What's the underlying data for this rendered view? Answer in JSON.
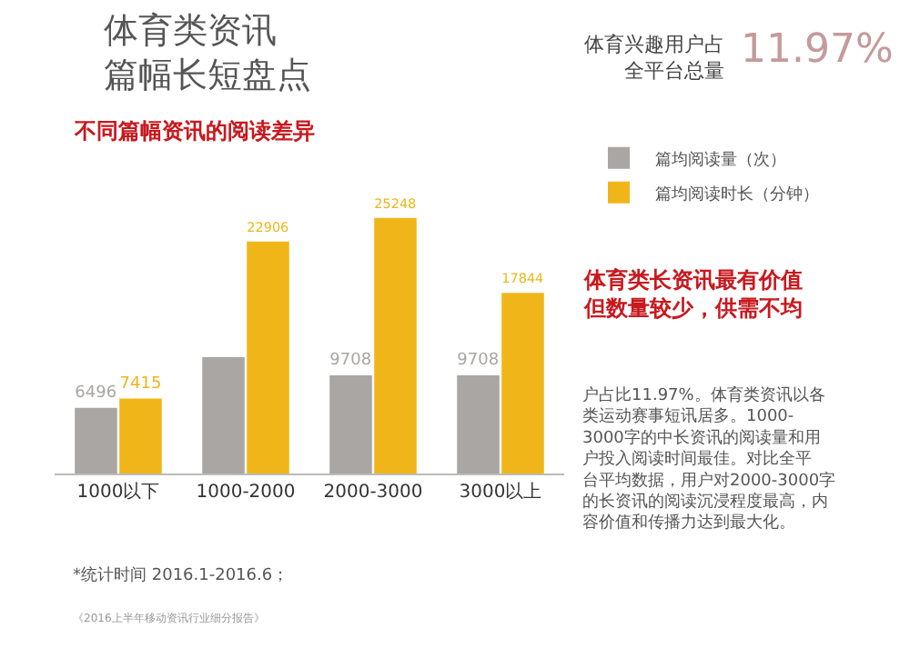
{
  "chart_data": {
    "type": "bar",
    "title": "体育类资讯篇幅长短盘点",
    "subtitle": "不同篇幅资讯的阅读差异",
    "categories": [
      "1000以下",
      "1000-2000",
      "2000-3000",
      "3000以上"
    ],
    "series": [
      {
        "name": "篇均阅读量（次）",
        "color": "#a9a6a4",
        "values": [
          6496,
          11500,
          9708,
          9708
        ],
        "value_labels": [
          "6496",
          null,
          "9708",
          "9708"
        ]
      },
      {
        "name": "篇均阅读时长（分钟）",
        "color": "#f0b619",
        "values": [
          7415,
          22906,
          25248,
          17844
        ],
        "value_labels": [
          "7415",
          "22906",
          "25248",
          "17844"
        ]
      }
    ],
    "legend": "top right",
    "annotations": [
      "体育兴趣用户占全平台总量",
      "11.97%",
      "体育类长资讯最有价值但数量较少，供需不均",
      "户占比11.97%。体育类资讯以各类运动赛事短讯居多。1000-3000字的中长资讯的阅读量和用户投入阅读时间最佳。对比全平台平均数据，用户对2000-3000字的长资讯的阅读沉浸程度最高，内容价值和传播力达到最大化。",
      "*统计时间 2016.1-2016.6；",
      "《2016上半年移动资讯行业细分报告》"
    ]
  }
}
